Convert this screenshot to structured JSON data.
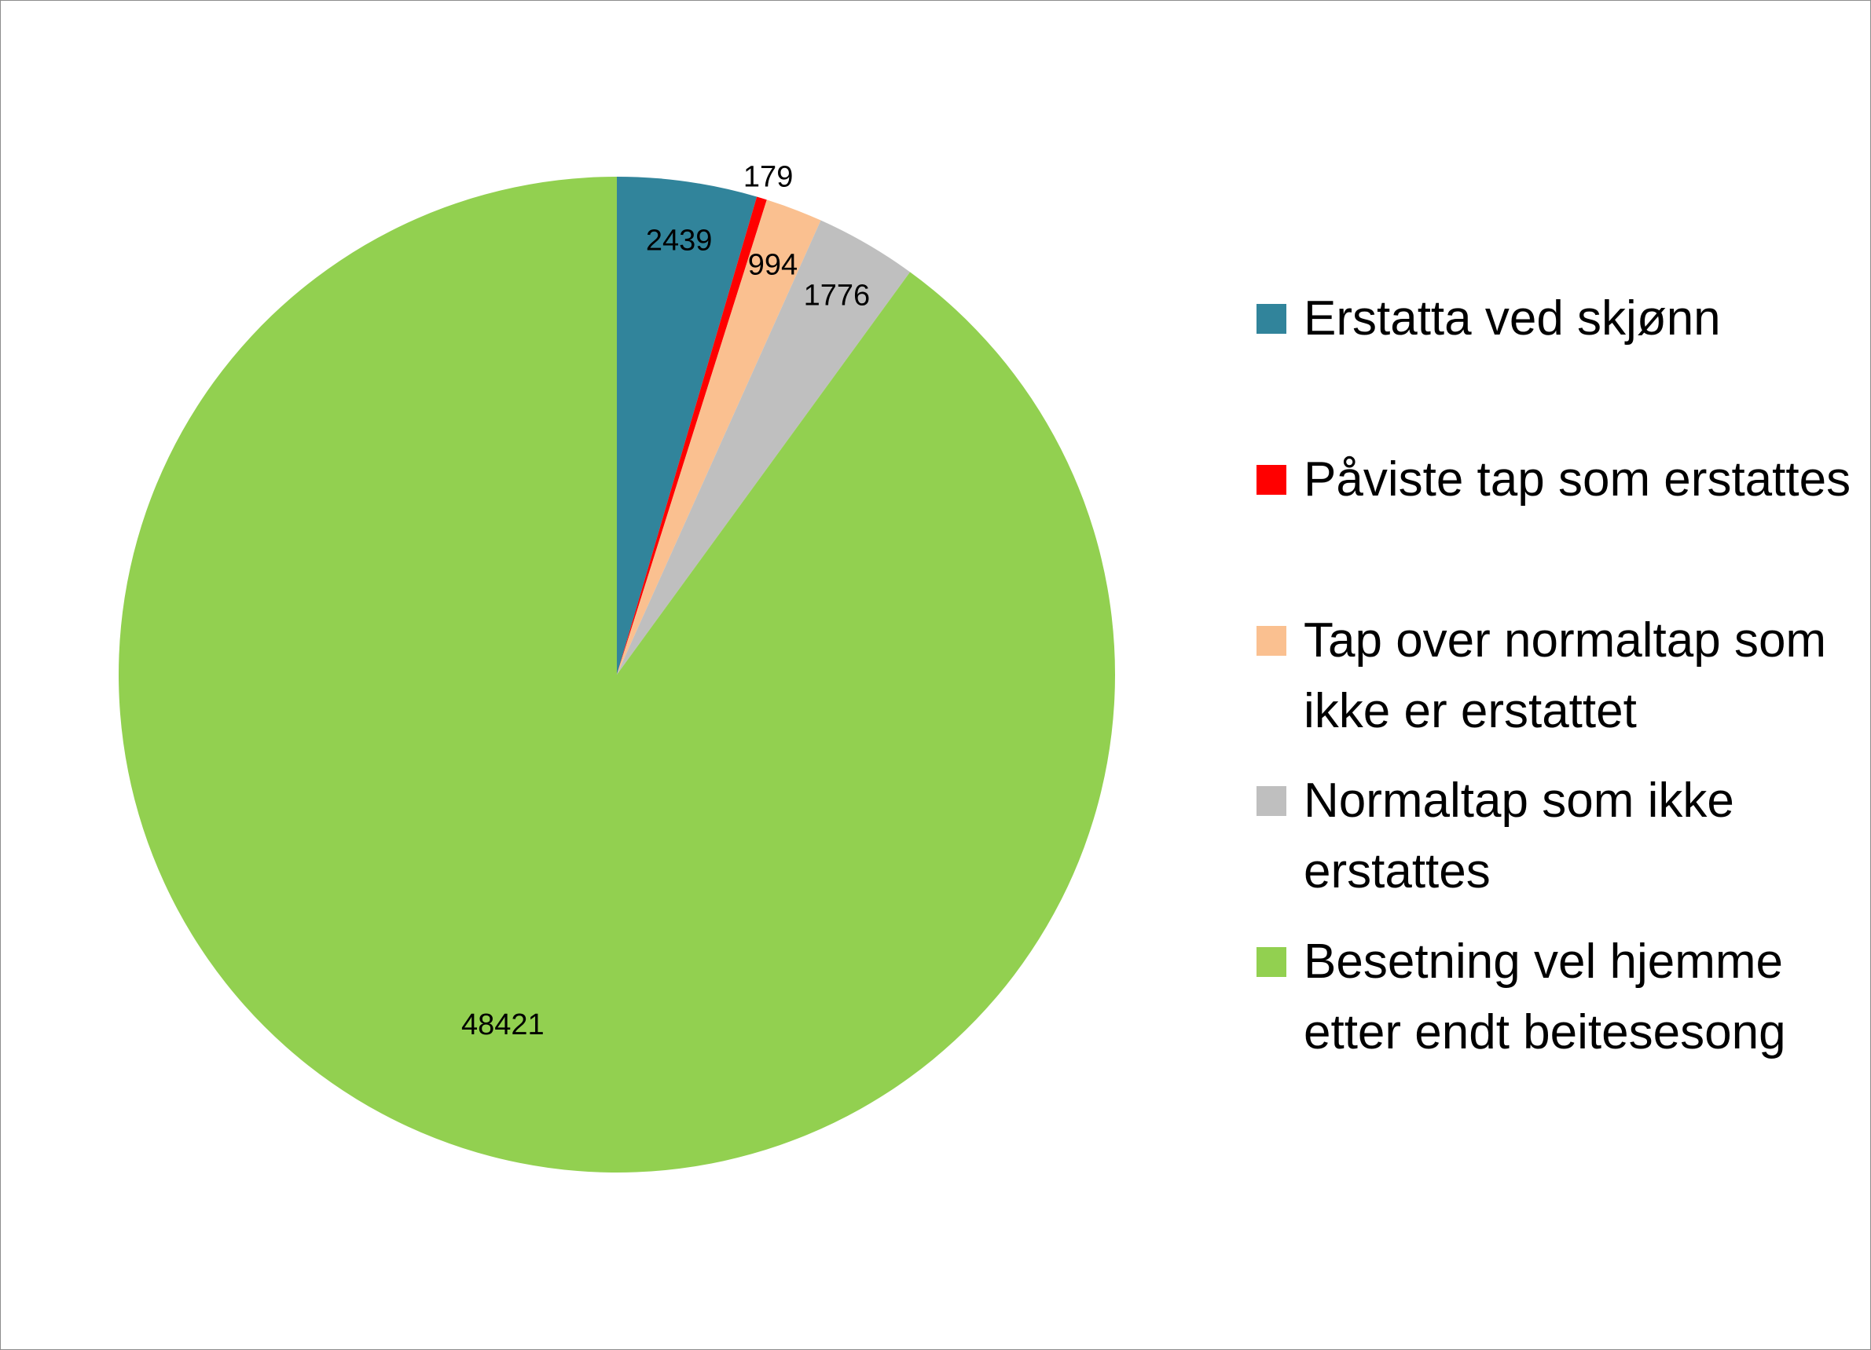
{
  "chart_data": {
    "type": "pie",
    "title": "",
    "start_angle_deg": 0,
    "direction": "clockwise",
    "legend_position": "right",
    "slices": [
      {
        "label": "Erstatta ved skjønn",
        "value": 2439,
        "color": "#31849B"
      },
      {
        "label": "Påviste tap som erstattes",
        "value": 179,
        "color": "#FF0000"
      },
      {
        "label": "Tap over normaltap som ikke er erstattet",
        "value": 994,
        "color": "#FAC090"
      },
      {
        "label": "Normaltap som ikke erstattes",
        "value": 1776,
        "color": "#BFBFBF"
      },
      {
        "label": "Besetning vel hjemme etter endt beitesesong",
        "value": 48421,
        "color": "#92D050"
      }
    ]
  }
}
